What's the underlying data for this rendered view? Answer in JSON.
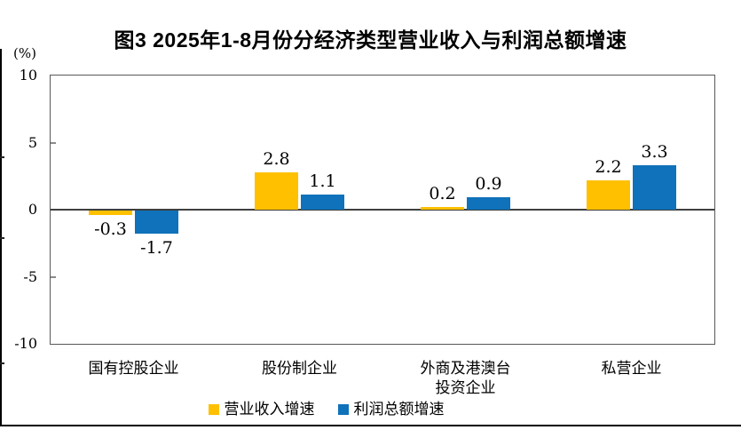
{
  "title": "图3  2025年1-8月份分经济类型营业收入与利润总额增速",
  "y_axis": {
    "unit_label": "(%)",
    "ticks": [
      10,
      5,
      0,
      -5,
      -10
    ],
    "max": 10,
    "min": -10
  },
  "chart_data": {
    "type": "bar",
    "title": "图3  2025年1-8月份分经济类型营业收入与利润总额增速",
    "ylabel": "(%)",
    "ylim": [
      -10,
      10
    ],
    "grid": false,
    "legend_position": "bottom",
    "categories": [
      "国有控股企业",
      "股份制企业",
      "外商及港澳台\n投资企业",
      "私营企业"
    ],
    "series": [
      {
        "name": "营业收入增速",
        "color": "#FFC000",
        "values": [
          -0.3,
          2.8,
          0.2,
          2.2
        ]
      },
      {
        "name": "利润总额增速",
        "color": "#0F72BA",
        "values": [
          -1.7,
          1.1,
          0.9,
          3.3
        ]
      }
    ]
  }
}
